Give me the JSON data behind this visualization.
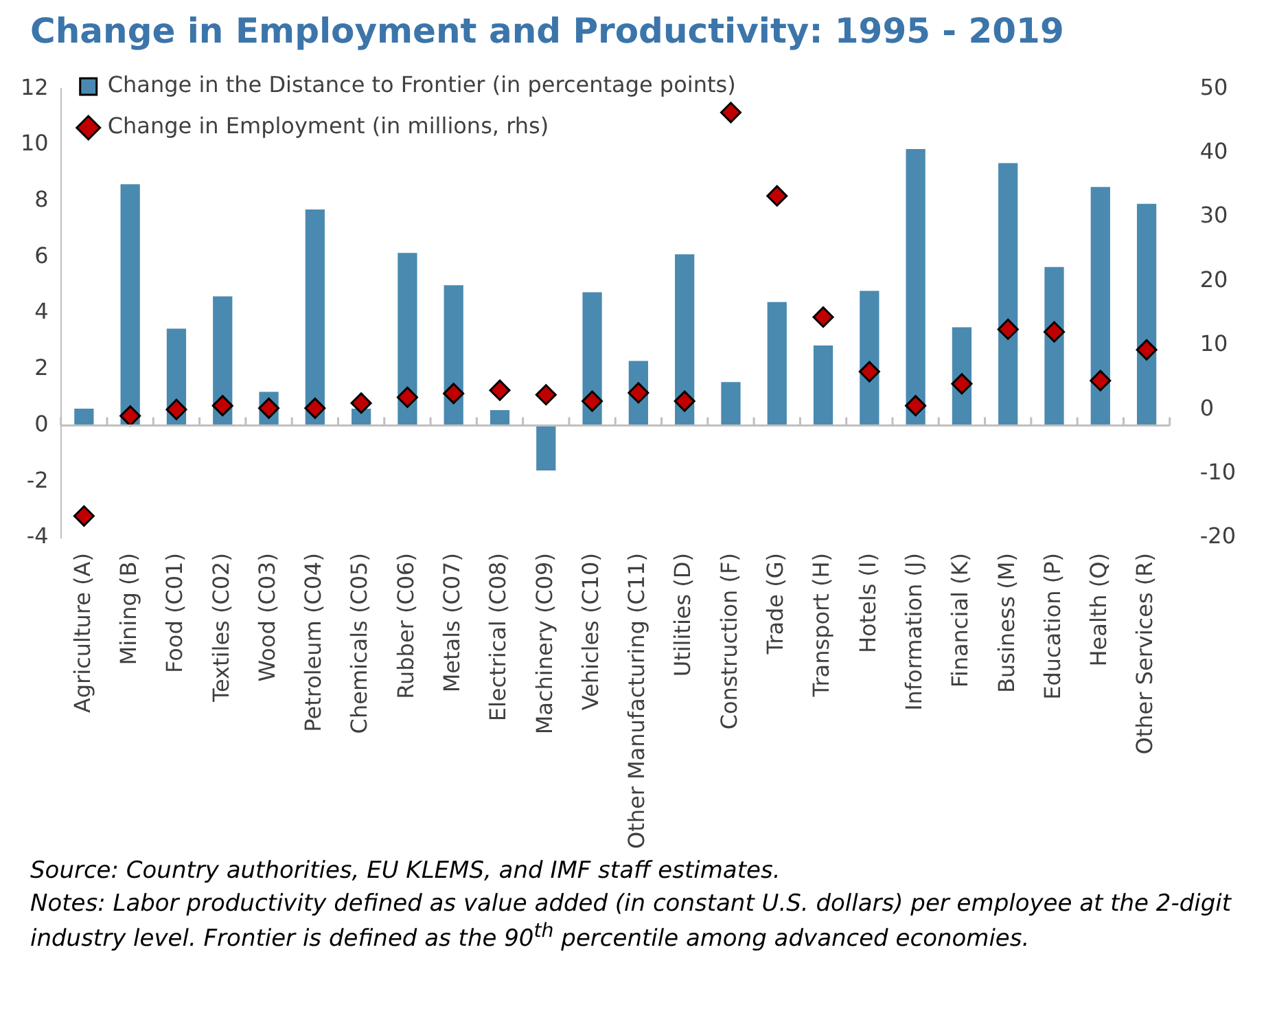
{
  "chart_data": {
    "type": "bar",
    "title": "Change in Employment and Productivity: 1995 - 2019",
    "categories": [
      "Agriculture (A)",
      "Mining (B)",
      "Food (C01)",
      "Textiles (C02)",
      "Wood (C03)",
      "Petroleum (C04)",
      "Chemicals (C05)",
      "Rubber (C06)",
      "Metals (C07)",
      "Electrical (C08)",
      "Machinery (C09)",
      "Vehicles (C10)",
      "Other Manufacturing (C11)",
      "Utilities (D)",
      "Construction (F)",
      "Trade (G)",
      "Transport (H)",
      "Hotels (I)",
      "Information (J)",
      "Financial (K)",
      "Business (M)",
      "Education (P)",
      "Health (Q)",
      "Other Services (R)"
    ],
    "series": [
      {
        "name": "Change in the Distance to Frontier (in percentage points)",
        "type": "bar",
        "color": "#4a8ab0",
        "values": [
          0.6,
          8.6,
          3.45,
          4.6,
          1.2,
          7.7,
          0.6,
          6.15,
          5.0,
          0.55,
          -1.6,
          4.75,
          2.3,
          6.1,
          1.55,
          4.4,
          2.85,
          4.8,
          9.85,
          3.5,
          9.35,
          5.65,
          8.5,
          7.9
        ]
      },
      {
        "name": "Change in Employment (in millions, rhs)",
        "type": "scatter",
        "axis": "y2",
        "marker": "diamond",
        "color": "#c00000",
        "values": [
          -16.6,
          -1.0,
          0.0,
          0.6,
          0.2,
          0.2,
          1.0,
          1.9,
          2.5,
          3.0,
          2.3,
          1.3,
          2.6,
          1.3,
          46.3,
          33.3,
          14.4,
          5.9,
          0.6,
          4.0,
          12.5,
          12.1,
          4.5,
          9.3
        ]
      }
    ],
    "ylim": [
      -4,
      12
    ],
    "yticks": [
      -4,
      -2,
      0,
      2,
      4,
      6,
      8,
      10,
      12
    ],
    "y2lim": [
      -20,
      50
    ],
    "y2ticks": [
      -20,
      -10,
      0,
      10,
      20,
      30,
      40,
      50
    ],
    "grid": false,
    "ref_lines": [
      {
        "axis": "y",
        "value": 0,
        "color": "#bfbfbf"
      }
    ],
    "legend": "top left",
    "annotations": [
      "Source: Country authorities, EU KLEMS, and IMF staff estimates.",
      "Notes: Labor productivity defined as value added (in constant U.S. dollars) per employee at the 2-digit industry level. Frontier is defined as the 90$^{th}$ percentile among advanced economies."
    ]
  }
}
